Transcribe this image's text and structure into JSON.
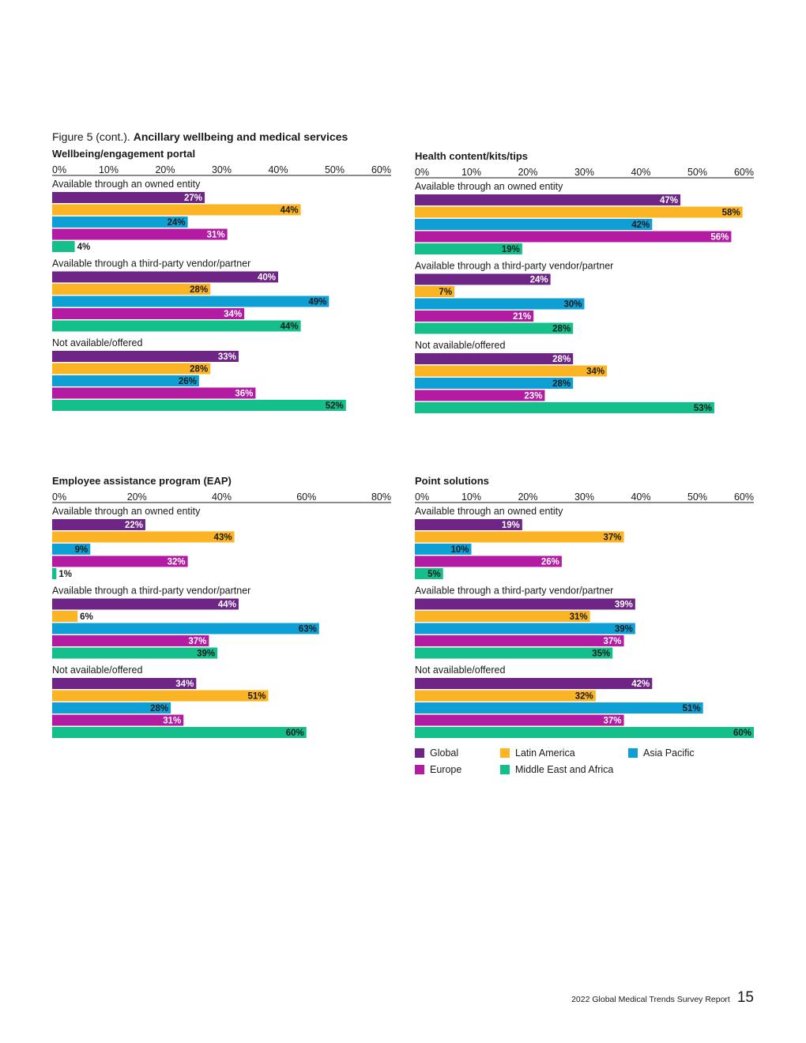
{
  "figure": {
    "prefix": "Figure 5 (cont.). ",
    "title": "Ancillary wellbeing and medical services"
  },
  "legend": [
    {
      "name": "Global",
      "color": "#6e2585"
    },
    {
      "name": "Latin America",
      "color": "#fbb424"
    },
    {
      "name": "Asia Pacific",
      "color": "#0e9fd4"
    },
    {
      "name": "Europe",
      "color": "#b31ba3"
    },
    {
      "name": "Middle East and Africa",
      "color": "#14bf8b"
    }
  ],
  "chart_data": [
    {
      "type": "bar",
      "orientation": "horizontal",
      "title": "Wellbeing/engagement portal",
      "xlim": [
        0,
        60
      ],
      "ticks": [
        "0%",
        "10%",
        "20%",
        "30%",
        "40%",
        "50%",
        "60%"
      ],
      "series_names": [
        "Global",
        "Latin America",
        "Asia Pacific",
        "Europe",
        "Middle East and Africa"
      ],
      "groups": [
        {
          "label": "Available through an owned entity",
          "values": [
            27,
            44,
            24,
            31,
            4
          ]
        },
        {
          "label": "Available through a third-party vendor/partner",
          "values": [
            40,
            28,
            49,
            34,
            44
          ]
        },
        {
          "label": "Not available/offered",
          "values": [
            33,
            28,
            26,
            36,
            52
          ]
        }
      ]
    },
    {
      "type": "bar",
      "orientation": "horizontal",
      "title": "Health content/kits/tips",
      "xlim": [
        0,
        60
      ],
      "ticks": [
        "0%",
        "10%",
        "20%",
        "30%",
        "40%",
        "50%",
        "60%"
      ],
      "series_names": [
        "Global",
        "Latin America",
        "Asia Pacific",
        "Europe",
        "Middle East and Africa"
      ],
      "groups": [
        {
          "label": "Available through an owned entity",
          "values": [
            47,
            58,
            42,
            56,
            19
          ]
        },
        {
          "label": "Available through a third-party vendor/partner",
          "values": [
            24,
            7,
            30,
            21,
            28
          ]
        },
        {
          "label": "Not available/offered",
          "values": [
            28,
            34,
            28,
            23,
            53
          ]
        }
      ]
    },
    {
      "type": "bar",
      "orientation": "horizontal",
      "title": "Employee assistance program (EAP)",
      "xlim": [
        0,
        80
      ],
      "ticks": [
        "0%",
        "20%",
        "40%",
        "60%",
        "80%"
      ],
      "series_names": [
        "Global",
        "Latin America",
        "Asia Pacific",
        "Europe",
        "Middle East and Africa"
      ],
      "groups": [
        {
          "label": "Available through an owned entity",
          "values": [
            22,
            43,
            9,
            32,
            1
          ]
        },
        {
          "label": "Available through a third-party vendor/partner",
          "values": [
            44,
            6,
            63,
            37,
            39
          ]
        },
        {
          "label": "Not available/offered",
          "values": [
            34,
            51,
            28,
            31,
            60
          ]
        }
      ]
    },
    {
      "type": "bar",
      "orientation": "horizontal",
      "title": "Point solutions",
      "xlim": [
        0,
        60
      ],
      "ticks": [
        "0%",
        "10%",
        "20%",
        "30%",
        "40%",
        "50%",
        "60%"
      ],
      "series_names": [
        "Global",
        "Latin America",
        "Asia Pacific",
        "Europe",
        "Middle East and Africa"
      ],
      "groups": [
        {
          "label": "Available through an owned entity",
          "values": [
            19,
            37,
            10,
            26,
            5
          ]
        },
        {
          "label": "Available through a third-party vendor/partner",
          "values": [
            39,
            31,
            39,
            37,
            35
          ]
        },
        {
          "label": "Not available/offered",
          "values": [
            42,
            32,
            51,
            37,
            60
          ]
        }
      ]
    }
  ],
  "footer": {
    "report": "2022 Global Medical Trends Survey Report",
    "page": "15"
  }
}
